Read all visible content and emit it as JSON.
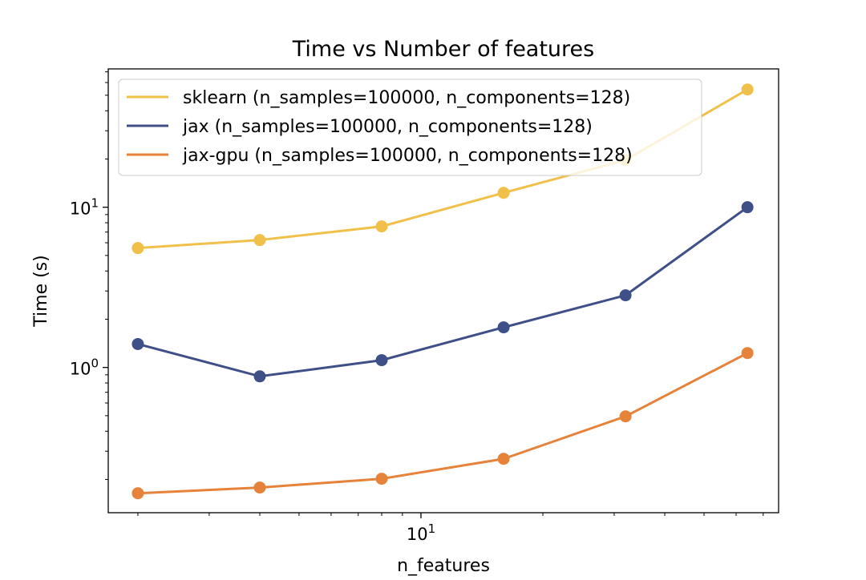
{
  "chart_data": {
    "type": "line",
    "title": "Time vs Number of features",
    "xlabel": "n_features",
    "ylabel": "Time (s)",
    "xscale": "log",
    "yscale": "log",
    "xlim": [
      1.69,
      76.4
    ],
    "ylim": [
      0.124,
      73
    ],
    "x_tick_labels": [
      {
        "value": 10,
        "base": "10",
        "exp": "1"
      }
    ],
    "y_tick_labels": [
      {
        "value": 1,
        "base": "10",
        "exp": "0"
      },
      {
        "value": 10,
        "base": "10",
        "exp": "1"
      }
    ],
    "grid": false,
    "legend_position": "top-left",
    "x": [
      2,
      4,
      8,
      16,
      32,
      64
    ],
    "series": [
      {
        "name": "sklearn (n_samples=100000, n_components=128)",
        "color": "#f0c04a",
        "values": [
          5.56,
          6.24,
          7.59,
          12.3,
          19.7,
          54.3
        ]
      },
      {
        "name": "jax (n_samples=100000, n_components=128)",
        "color": "#3f4f87",
        "values": [
          1.4,
          0.88,
          1.11,
          1.78,
          2.82,
          10.0
        ]
      },
      {
        "name": "jax-gpu (n_samples=100000, n_components=128)",
        "color": "#e6823a",
        "values": [
          0.164,
          0.178,
          0.202,
          0.269,
          0.495,
          1.23
        ]
      }
    ]
  }
}
